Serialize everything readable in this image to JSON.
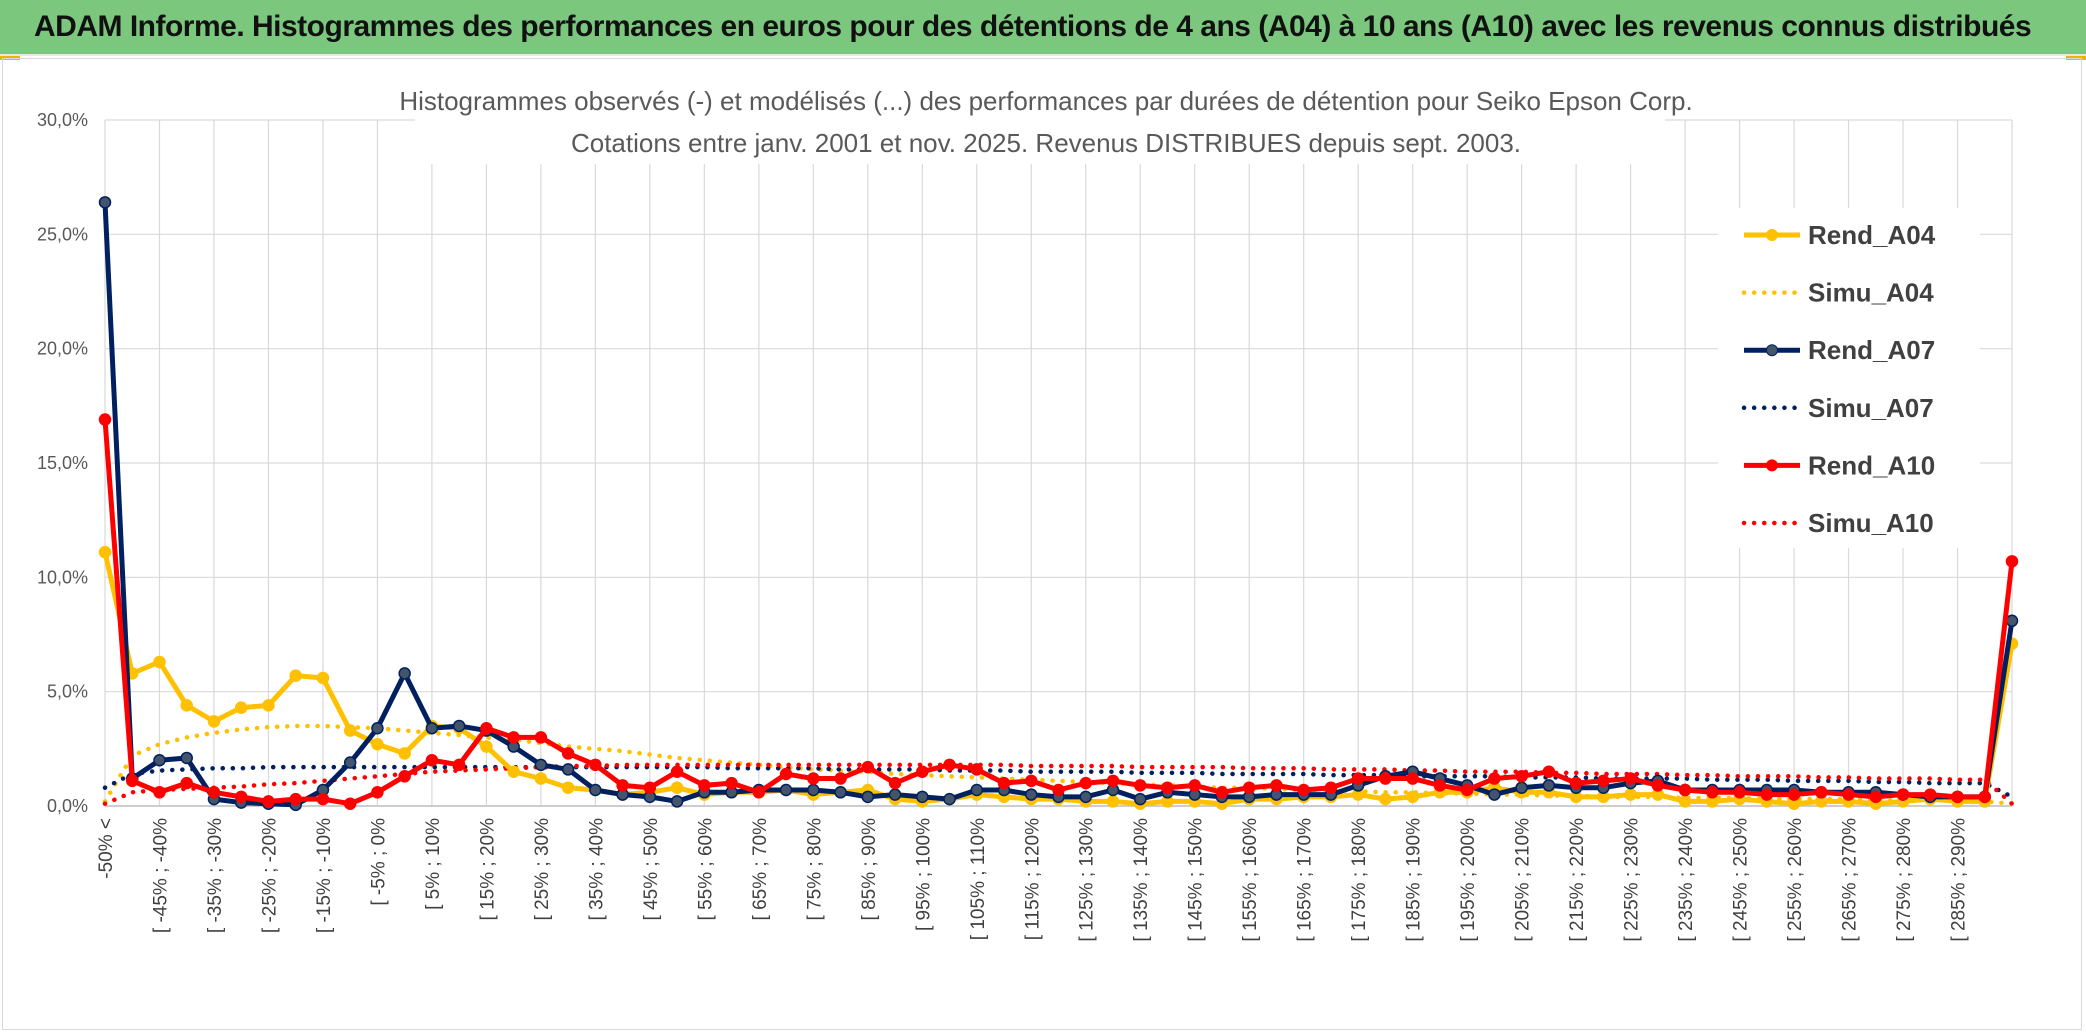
{
  "header": {
    "title": "ADAM Informe. Histogrammes des performances en euros pour des détentions de 4 ans (A04) à 10 ans (A10) avec les revenus connus distribués"
  },
  "colors": {
    "a04": "#ffc000",
    "a07": "#002060",
    "a10": "#ff0000",
    "header_bg": "#7bc77e"
  },
  "chart_data": {
    "type": "line",
    "title_line1": "Histogrammes observés (-) et modélisés (...) des performances par durées de détention pour Seiko Epson Corp.",
    "title_line2": "Cotations entre janv. 2001 et nov. 2025. Revenus DISTRIBUES depuis sept. 2003.",
    "ylim": [
      0,
      30
    ],
    "y_ticks": [
      "0,0%",
      "5,0%",
      "10,0%",
      "15,0%",
      "20,0%",
      "25,0%",
      "30,0%"
    ],
    "y_tick_values": [
      0,
      5,
      10,
      15,
      20,
      25,
      30
    ],
    "x_labels": [
      "-50% <",
      "[ -45% ; -40%",
      "[ -35% ; -30%",
      "[ -25% ; -20%",
      "[ -15% ; -10%",
      "[ -5% ; 0%",
      "[ 5% ; 10%",
      "[ 15% ; 20%",
      "[ 25% ; 30%",
      "[ 35% ; 40%",
      "[ 45% ; 50%",
      "[ 55% ; 60%",
      "[ 65% ; 70%",
      "[ 75% ; 80%",
      "[ 85% ; 90%",
      "[ 95% ; 100%",
      "[ 105% ; 110%",
      "[ 115% ; 120%",
      "[ 125% ; 130%",
      "[ 135% ; 140%",
      "[ 145% ; 150%",
      "[ 155% ; 160%",
      "[ 165% ; 170%",
      "[ 175% ; 180%",
      "[ 185% ; 190%",
      "[ 195% ; 200%",
      "[ 205% ; 210%",
      "[ 215% ; 220%",
      "[ 225% ; 230%",
      "[ 235% ; 240%",
      "[ 245% ; 250%",
      "[ 255% ; 260%",
      "[ 265% ; 270%",
      "[ 275% ; 280%",
      "[ 285% ; 290%"
    ],
    "category_count": 71,
    "series": [
      {
        "name": "Rend_A04",
        "style": "solid",
        "color": "#ffc000",
        "values": [
          11.1,
          5.8,
          6.3,
          4.4,
          3.7,
          4.3,
          4.4,
          5.7,
          5.6,
          3.3,
          2.7,
          2.3,
          3.5,
          3.4,
          2.6,
          1.5,
          1.2,
          0.8,
          0.7,
          0.5,
          0.6,
          0.8,
          0.5,
          0.6,
          0.6,
          0.7,
          0.5,
          0.6,
          0.7,
          0.3,
          0.2,
          0.3,
          0.5,
          0.4,
          0.3,
          0.3,
          0.2,
          0.2,
          0.1,
          0.2,
          0.2,
          0.1,
          0.3,
          0.3,
          0.4,
          0.4,
          0.5,
          0.3,
          0.4,
          0.6,
          0.6,
          0.8,
          0.6,
          0.6,
          0.4,
          0.4,
          0.5,
          0.5,
          0.2,
          0.2,
          0.3,
          0.2,
          0.1,
          0.2,
          0.2,
          0.1,
          0.2,
          0.3,
          0.2,
          0.2,
          7.1
        ]
      },
      {
        "name": "Simu_A04",
        "style": "dotted",
        "color": "#ffc000",
        "values": [
          0.2,
          2.2,
          2.7,
          3.0,
          3.2,
          3.35,
          3.45,
          3.5,
          3.5,
          3.45,
          3.4,
          3.3,
          3.2,
          3.1,
          3.0,
          2.9,
          2.75,
          2.6,
          2.5,
          2.4,
          2.25,
          2.1,
          2.0,
          1.9,
          1.8,
          1.7,
          1.6,
          1.55,
          1.5,
          1.4,
          1.35,
          1.3,
          1.25,
          1.2,
          1.15,
          1.1,
          1.05,
          1.0,
          0.95,
          0.9,
          0.85,
          0.8,
          0.8,
          0.75,
          0.7,
          0.7,
          0.65,
          0.6,
          0.6,
          0.55,
          0.55,
          0.5,
          0.5,
          0.45,
          0.45,
          0.4,
          0.4,
          0.4,
          0.35,
          0.35,
          0.35,
          0.3,
          0.3,
          0.3,
          0.3,
          0.25,
          0.25,
          0.25,
          0.25,
          0.2,
          0.1
        ]
      },
      {
        "name": "Rend_A07",
        "style": "solid",
        "color": "#002060",
        "values": [
          26.4,
          1.2,
          2.0,
          2.1,
          0.3,
          0.15,
          0.1,
          0.05,
          0.7,
          1.9,
          3.4,
          5.8,
          3.4,
          3.5,
          3.3,
          2.6,
          1.8,
          1.6,
          0.7,
          0.5,
          0.4,
          0.2,
          0.6,
          0.6,
          0.7,
          0.7,
          0.7,
          0.6,
          0.4,
          0.5,
          0.4,
          0.3,
          0.7,
          0.7,
          0.5,
          0.4,
          0.4,
          0.7,
          0.3,
          0.6,
          0.5,
          0.4,
          0.4,
          0.5,
          0.5,
          0.5,
          0.9,
          1.3,
          1.5,
          1.2,
          0.9,
          0.5,
          0.8,
          0.9,
          0.8,
          0.8,
          1.0,
          1.1,
          0.7,
          0.7,
          0.7,
          0.7,
          0.7,
          0.6,
          0.6,
          0.6,
          0.5,
          0.4,
          0.4,
          0.4,
          8.1
        ]
      },
      {
        "name": "Simu_A07",
        "style": "dotted",
        "color": "#002060",
        "values": [
          0.8,
          1.4,
          1.55,
          1.6,
          1.65,
          1.65,
          1.7,
          1.7,
          1.7,
          1.7,
          1.7,
          1.7,
          1.7,
          1.7,
          1.7,
          1.7,
          1.7,
          1.7,
          1.7,
          1.7,
          1.7,
          1.7,
          1.7,
          1.65,
          1.65,
          1.65,
          1.65,
          1.6,
          1.6,
          1.6,
          1.6,
          1.55,
          1.55,
          1.55,
          1.5,
          1.5,
          1.5,
          1.5,
          1.45,
          1.45,
          1.45,
          1.4,
          1.4,
          1.4,
          1.4,
          1.35,
          1.35,
          1.35,
          1.3,
          1.3,
          1.3,
          1.3,
          1.25,
          1.25,
          1.25,
          1.2,
          1.2,
          1.2,
          1.2,
          1.15,
          1.15,
          1.15,
          1.1,
          1.1,
          1.1,
          1.05,
          1.05,
          1.0,
          1.0,
          1.0,
          0.4
        ]
      },
      {
        "name": "Rend_A10",
        "style": "solid",
        "color": "#ff0000",
        "values": [
          16.9,
          1.1,
          0.6,
          1.0,
          0.6,
          0.4,
          0.2,
          0.3,
          0.3,
          0.1,
          0.6,
          1.3,
          2.0,
          1.8,
          3.4,
          3.0,
          3.0,
          2.3,
          1.8,
          0.9,
          0.8,
          1.5,
          0.9,
          1.0,
          0.6,
          1.4,
          1.2,
          1.2,
          1.7,
          1.0,
          1.5,
          1.8,
          1.6,
          1.0,
          1.1,
          0.7,
          1.0,
          1.1,
          0.9,
          0.8,
          0.9,
          0.6,
          0.8,
          0.9,
          0.7,
          0.8,
          1.2,
          1.2,
          1.2,
          0.9,
          0.7,
          1.2,
          1.3,
          1.5,
          1.0,
          1.1,
          1.2,
          0.9,
          0.7,
          0.6,
          0.6,
          0.5,
          0.5,
          0.6,
          0.5,
          0.4,
          0.5,
          0.5,
          0.4,
          0.4,
          10.7
        ]
      },
      {
        "name": "Simu_A10",
        "style": "dotted",
        "color": "#ff0000",
        "values": [
          0.1,
          0.6,
          0.7,
          0.75,
          0.8,
          0.85,
          0.95,
          1.0,
          1.1,
          1.2,
          1.3,
          1.4,
          1.5,
          1.55,
          1.6,
          1.65,
          1.7,
          1.75,
          1.75,
          1.8,
          1.8,
          1.8,
          1.8,
          1.8,
          1.8,
          1.8,
          1.8,
          1.8,
          1.8,
          1.8,
          1.8,
          1.8,
          1.8,
          1.8,
          1.75,
          1.75,
          1.75,
          1.75,
          1.7,
          1.7,
          1.7,
          1.7,
          1.65,
          1.65,
          1.65,
          1.6,
          1.6,
          1.6,
          1.55,
          1.55,
          1.5,
          1.5,
          1.5,
          1.45,
          1.45,
          1.4,
          1.4,
          1.4,
          1.35,
          1.35,
          1.3,
          1.3,
          1.3,
          1.25,
          1.25,
          1.2,
          1.2,
          1.2,
          1.15,
          1.15,
          0.1
        ]
      }
    ],
    "legend": [
      "Rend_A04",
      "Simu_A04",
      "Rend_A07",
      "Simu_A07",
      "Rend_A10",
      "Simu_A10"
    ],
    "legend_position": "right"
  }
}
